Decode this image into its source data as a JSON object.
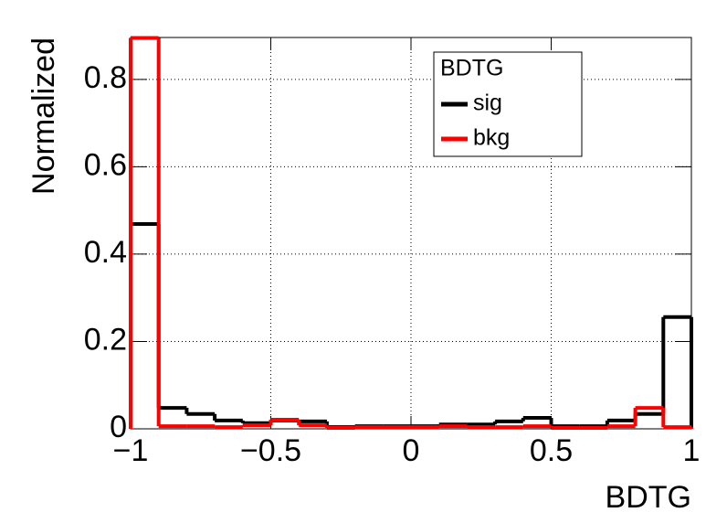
{
  "chart_data": {
    "type": "histogram",
    "x_label": "BDTG",
    "y_label": "Normalized",
    "legend_title": "BDTG",
    "bins": [
      -1,
      -0.9,
      -0.8,
      -0.7,
      -0.6,
      -0.5,
      -0.4,
      -0.3,
      -0.2,
      -0.1,
      0,
      0.1,
      0.2,
      0.3,
      0.4,
      0.5,
      0.6,
      0.7,
      0.8,
      0.9,
      1
    ],
    "series": [
      {
        "name": "sig",
        "color": "#000000",
        "values": [
          0.469,
          0.048,
          0.034,
          0.019,
          0.013,
          0.019,
          0.017,
          0.004,
          0.006,
          0.006,
          0.006,
          0.01,
          0.01,
          0.017,
          0.025,
          0.006,
          0.006,
          0.019,
          0.034,
          0.256
        ]
      },
      {
        "name": "bkg",
        "color": "#ff0000",
        "values": [
          0.895,
          0.006,
          0.006,
          0.004,
          0.008,
          0.021,
          0.008,
          0.002,
          0.004,
          0.004,
          0.004,
          0.006,
          0.004,
          0.004,
          0.006,
          0.002,
          0.002,
          0.006,
          0.048,
          0.004
        ]
      }
    ],
    "xlim": [
      -1,
      1
    ],
    "ylim": [
      0,
      0.896
    ],
    "xticks": [
      {
        "value": -1,
        "label": "−1"
      },
      {
        "value": -0.5,
        "label": "−0.5"
      },
      0,
      0.5,
      1
    ],
    "yticks": [
      0,
      0.2,
      0.4,
      0.6,
      0.8
    ],
    "grid": true
  }
}
